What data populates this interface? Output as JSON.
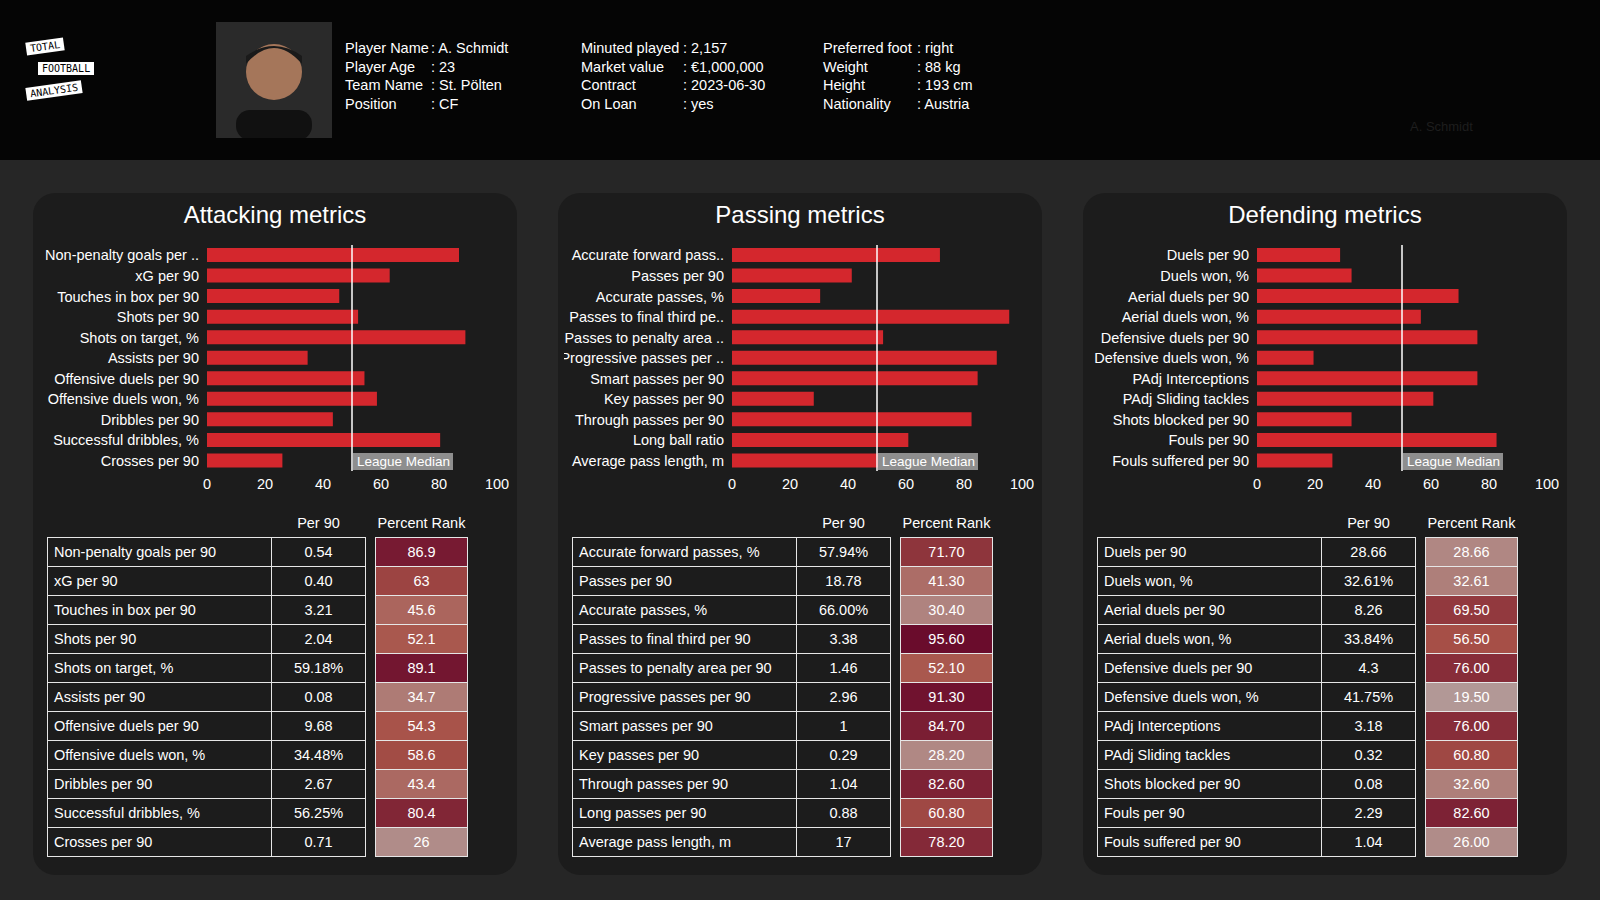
{
  "header": {
    "logo": [
      "TOTAL",
      "FOOTBALL",
      "ANALYSIS"
    ],
    "watermark": "A. Schmidt",
    "columns": [
      [
        [
          "Player Name",
          ": A. Schmidt"
        ],
        [
          "Player Age",
          ": 23"
        ],
        [
          "Team Name",
          ": St. Pölten"
        ],
        [
          "Position",
          ": CF"
        ]
      ],
      [
        [
          "Minuted played",
          ": 2,157"
        ],
        [
          "Market value",
          ": €1,000,000"
        ],
        [
          "Contract",
          ": 2023-06-30"
        ],
        [
          "On Loan",
          ": yes"
        ]
      ],
      [
        [
          "Preferred foot",
          ": right"
        ],
        [
          "Weight",
          ": 88 kg"
        ],
        [
          "Height",
          ": 193 cm"
        ],
        [
          "Nationality",
          ": Austria"
        ]
      ]
    ]
  },
  "chart_data": [
    {
      "type": "bar",
      "orientation": "horizontal",
      "title": "Attacking metrics",
      "categories": [
        "Non-penalty goals per ..",
        "xG per 90",
        "Touches in box per 90",
        "Shots per 90",
        "Shots on target, %",
        "Assists per 90",
        "Offensive duels per 90",
        "Offensive duels won, %",
        "Dribbles per 90",
        "Successful dribbles, %",
        "Crosses per 90"
      ],
      "values": [
        86.9,
        63,
        45.6,
        52.1,
        89.1,
        34.7,
        54.3,
        58.6,
        43.4,
        80.4,
        26
      ],
      "color": "#d4272d",
      "xlim": [
        0,
        100
      ],
      "xticks": [
        0,
        20,
        40,
        60,
        80,
        100
      ],
      "reference_line": {
        "value": 50,
        "label": "League Median"
      }
    },
    {
      "type": "bar",
      "orientation": "horizontal",
      "title": "Passing metrics",
      "categories": [
        "Accurate forward pass..",
        "Passes per 90",
        "Accurate passes, %",
        "Passes to final third pe..",
        "Passes to penalty area ..",
        "Progressive passes per ..",
        "Smart passes per 90",
        "Key passes per 90",
        "Through passes per 90",
        "Long ball ratio",
        "Average pass length, m"
      ],
      "values": [
        71.7,
        41.3,
        30.4,
        95.6,
        52.1,
        91.3,
        84.7,
        28.2,
        82.6,
        60.8,
        78.2
      ],
      "color": "#d4272d",
      "xlim": [
        0,
        100
      ],
      "xticks": [
        0,
        20,
        40,
        60,
        80,
        100
      ],
      "reference_line": {
        "value": 50,
        "label": "League Median"
      }
    },
    {
      "type": "bar",
      "orientation": "horizontal",
      "title": "Defending metrics",
      "categories": [
        "Duels per 90",
        "Duels won, %",
        "Aerial duels per 90",
        "Aerial duels won, %",
        "Defensive duels per 90",
        "Defensive duels won, %",
        "PAdj Interceptions",
        "PAdj Sliding tackles",
        "Shots blocked per 90",
        "Fouls per 90",
        "Fouls suffered per 90"
      ],
      "values": [
        28.66,
        32.61,
        69.5,
        56.5,
        76,
        19.5,
        76,
        60.8,
        32.6,
        82.6,
        26
      ],
      "color": "#d4272d",
      "xlim": [
        0,
        100
      ],
      "xticks": [
        0,
        20,
        40,
        60,
        80,
        100
      ],
      "reference_line": {
        "value": 50,
        "label": "League Median"
      }
    }
  ],
  "tables": [
    {
      "header": [
        "Per 90",
        "Percent Rank"
      ],
      "rows": [
        [
          "Non-penalty goals per 90",
          "0.54",
          "86.9"
        ],
        [
          "xG per 90",
          "0.40",
          "63"
        ],
        [
          "Touches in box per 90",
          "3.21",
          "45.6"
        ],
        [
          "Shots per 90",
          "2.04",
          "52.1"
        ],
        [
          "Shots on target, %",
          "59.18%",
          "89.1"
        ],
        [
          "Assists per 90",
          "0.08",
          "34.7"
        ],
        [
          "Offensive duels per 90",
          "9.68",
          "54.3"
        ],
        [
          "Offensive duels won, %",
          "34.48%",
          "58.6"
        ],
        [
          "Dribbles per 90",
          "2.67",
          "43.4"
        ],
        [
          "Successful dribbles, %",
          "56.25%",
          "80.4"
        ],
        [
          "Crosses per 90",
          "0.71",
          "26"
        ]
      ]
    },
    {
      "header": [
        "Per 90",
        "Percent Rank"
      ],
      "rows": [
        [
          "Accurate forward passes, %",
          "57.94%",
          "71.70"
        ],
        [
          "Passes per 90",
          "18.78",
          "41.30"
        ],
        [
          "Accurate passes, %",
          "66.00%",
          "30.40"
        ],
        [
          "Passes to final third per 90",
          "3.38",
          "95.60"
        ],
        [
          "Passes to penalty area per 90",
          "1.46",
          "52.10"
        ],
        [
          "Progressive passes per 90",
          "2.96",
          "91.30"
        ],
        [
          "Smart passes per 90",
          "1",
          "84.70"
        ],
        [
          "Key passes per 90",
          "0.29",
          "28.20"
        ],
        [
          "Through passes per 90",
          "1.04",
          "82.60"
        ],
        [
          "Long passes per 90",
          "0.88",
          "60.80"
        ],
        [
          "Average pass length, m",
          "17",
          "78.20"
        ]
      ]
    },
    {
      "header": [
        "Per 90",
        "Percent Rank"
      ],
      "rows": [
        [
          "Duels per 90",
          "28.66",
          "28.66"
        ],
        [
          "Duels won, %",
          "32.61%",
          "32.61"
        ],
        [
          "Aerial duels per 90",
          "8.26",
          "69.50"
        ],
        [
          "Aerial duels won, %",
          "33.84%",
          "56.50"
        ],
        [
          "Defensive duels per 90",
          "4.3",
          "76.00"
        ],
        [
          "Defensive duels won, %",
          "41.75%",
          "19.50"
        ],
        [
          "PAdj Interceptions",
          "3.18",
          "76.00"
        ],
        [
          "PAdj Sliding tackles",
          "0.32",
          "60.80"
        ],
        [
          "Shots blocked per 90",
          "0.08",
          "32.60"
        ],
        [
          "Fouls per 90",
          "2.29",
          "82.60"
        ],
        [
          "Fouls suffered per 90",
          "1.04",
          "26.00"
        ]
      ]
    }
  ]
}
